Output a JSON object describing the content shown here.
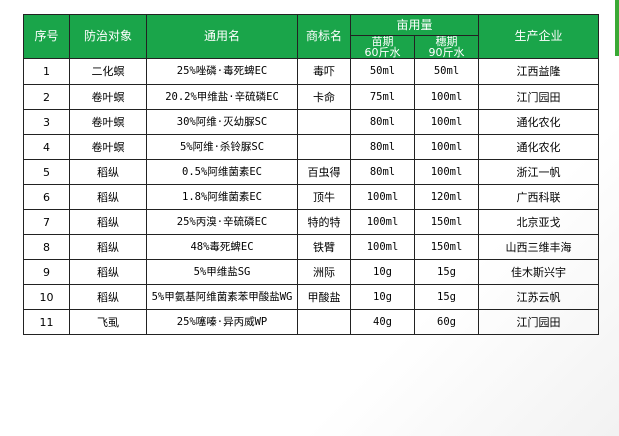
{
  "headers": {
    "seq": "序号",
    "target": "防治对象",
    "generic_name": "通用名",
    "brand": "商标名",
    "dosage_group": "亩用量",
    "seedling": "苗期",
    "seedling_water": "60斤水",
    "heading": "穗期",
    "heading_water": "90斤水",
    "maker": "生产企业"
  },
  "rows": [
    {
      "seq": "1",
      "target": "二化螟",
      "generic": "25%唑磷·毒死蜱EC",
      "brand": "毒吓",
      "seedling": "50ml",
      "heading": "50ml",
      "maker": "江西益隆"
    },
    {
      "seq": "2",
      "target": "卷叶螟",
      "generic": "20.2%甲维盐·辛硫磷EC",
      "brand": "卡命",
      "seedling": "75ml",
      "heading": "100ml",
      "maker": "江门园田"
    },
    {
      "seq": "3",
      "target": "卷叶螟",
      "generic": "30%阿维·灭幼脲SC",
      "brand": "",
      "seedling": "80ml",
      "heading": "100ml",
      "maker": "通化农化"
    },
    {
      "seq": "4",
      "target": "卷叶螟",
      "generic": "5%阿维·杀铃脲SC",
      "brand": "",
      "seedling": "80ml",
      "heading": "100ml",
      "maker": "通化农化"
    },
    {
      "seq": "5",
      "target": "稻纵",
      "generic": "0.5%阿维菌素EC",
      "brand": "百虫得",
      "seedling": "80ml",
      "heading": "100ml",
      "maker": "浙江一帆"
    },
    {
      "seq": "6",
      "target": "稻纵",
      "generic": "1.8%阿维菌素EC",
      "brand": "顶牛",
      "seedling": "100ml",
      "heading": "120ml",
      "maker": "广西科联"
    },
    {
      "seq": "7",
      "target": "稻纵",
      "generic": "25%丙溴·辛硫磷EC",
      "brand": "特的特",
      "seedling": "100ml",
      "heading": "150ml",
      "maker": "北京亚戈"
    },
    {
      "seq": "8",
      "target": "稻纵",
      "generic": "48%毒死蜱EC",
      "brand": "铁臂",
      "seedling": "100ml",
      "heading": "150ml",
      "maker": "山西三维丰海"
    },
    {
      "seq": "9",
      "target": "稻纵",
      "generic": "5%甲维盐SG",
      "brand": "洲际",
      "seedling": "10g",
      "heading": "15g",
      "maker": "佳木斯兴宇"
    },
    {
      "seq": "10",
      "target": "稻纵",
      "generic": "5%甲氨基阿维菌素苯甲酸盐WG",
      "brand": "甲酸盐",
      "seedling": "10g",
      "heading": "15g",
      "maker": "江苏云帆"
    },
    {
      "seq": "11",
      "target": "飞虱",
      "generic": "25%噻嗪·异丙威WP",
      "brand": "",
      "seedling": "40g",
      "heading": "60g",
      "maker": "江门园田"
    }
  ],
  "colors": {
    "header_bg": "#1aa54a",
    "accent": "#3aa935"
  }
}
